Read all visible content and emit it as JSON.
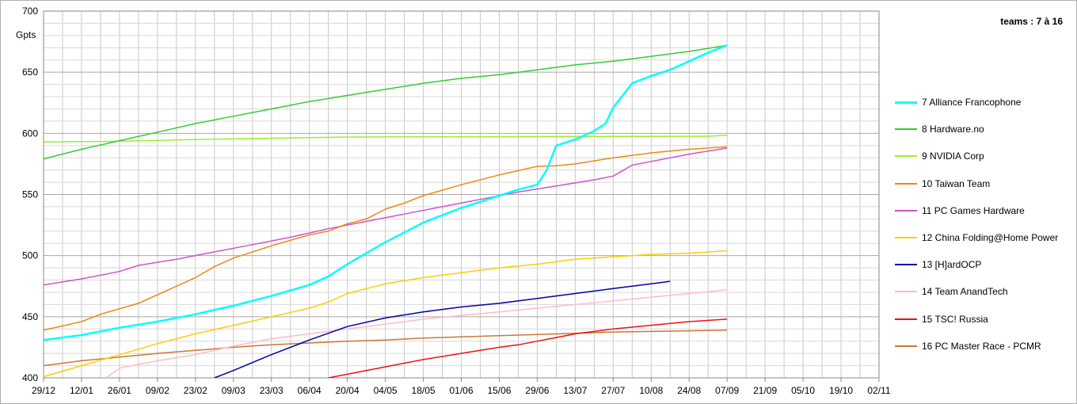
{
  "chart_data": {
    "type": "line",
    "title": "teams : 7 à 16",
    "ylabel": "Gpts",
    "xlabel": "",
    "ylim": [
      400,
      700
    ],
    "yticks": [
      400,
      450,
      500,
      550,
      600,
      650,
      700
    ],
    "xticks": [
      "29/12",
      "12/01",
      "26/01",
      "09/02",
      "23/02",
      "09/03",
      "23/03",
      "06/04",
      "20/04",
      "04/05",
      "18/05",
      "01/06",
      "15/06",
      "29/06",
      "13/07",
      "27/07",
      "10/08",
      "24/08",
      "07/09",
      "21/09",
      "05/10",
      "19/10",
      "02/11"
    ],
    "grid": true,
    "legend_position": "right",
    "series": [
      {
        "name": "7 Alliance Francophone",
        "color": "#00ffff",
        "points": [
          [
            0,
            431
          ],
          [
            2,
            435
          ],
          [
            4,
            441
          ],
          [
            6,
            446
          ],
          [
            8,
            452
          ],
          [
            10,
            459
          ],
          [
            12,
            467
          ],
          [
            14,
            476
          ],
          [
            15,
            483
          ],
          [
            16,
            493
          ],
          [
            17,
            502
          ],
          [
            18,
            511
          ],
          [
            19,
            519
          ],
          [
            20,
            527
          ],
          [
            21,
            533
          ],
          [
            22,
            539
          ],
          [
            23,
            544
          ],
          [
            24,
            549
          ],
          [
            25,
            554
          ],
          [
            26,
            558
          ],
          [
            26.5,
            570
          ],
          [
            27,
            590
          ],
          [
            28,
            595
          ],
          [
            29,
            602
          ],
          [
            29.6,
            608
          ],
          [
            30,
            621
          ],
          [
            31,
            641
          ],
          [
            32,
            647
          ],
          [
            33,
            652
          ],
          [
            34,
            659
          ],
          [
            35,
            666
          ],
          [
            36,
            672
          ]
        ]
      },
      {
        "name": "8 Hardware.no",
        "color": "#33cc33",
        "points": [
          [
            0,
            579
          ],
          [
            2,
            587
          ],
          [
            4,
            594
          ],
          [
            6,
            601
          ],
          [
            8,
            608
          ],
          [
            10,
            614
          ],
          [
            12,
            620
          ],
          [
            14,
            626
          ],
          [
            16,
            631
          ],
          [
            18,
            636
          ],
          [
            20,
            641
          ],
          [
            22,
            645
          ],
          [
            24,
            648
          ],
          [
            26,
            652
          ],
          [
            28,
            656
          ],
          [
            30,
            659
          ],
          [
            32,
            663
          ],
          [
            34,
            667
          ],
          [
            36,
            672
          ]
        ]
      },
      {
        "name": "9 NVIDIA Corp",
        "color": "#99ee33",
        "points": [
          [
            0,
            593
          ],
          [
            4,
            593.5
          ],
          [
            8,
            595
          ],
          [
            12,
            596
          ],
          [
            16,
            597
          ],
          [
            20,
            597.2
          ],
          [
            24,
            597.3
          ],
          [
            28,
            597.4
          ],
          [
            32,
            597.5
          ],
          [
            35,
            597.6
          ],
          [
            36,
            598.5
          ]
        ]
      },
      {
        "name": "10 Taiwan Team",
        "color": "#ee8811",
        "points": [
          [
            0,
            439
          ],
          [
            2,
            446
          ],
          [
            3,
            452
          ],
          [
            5,
            461
          ],
          [
            7,
            475
          ],
          [
            8,
            482
          ],
          [
            9,
            491
          ],
          [
            10,
            498
          ],
          [
            12,
            508
          ],
          [
            14,
            517
          ],
          [
            15,
            520
          ],
          [
            16,
            526
          ],
          [
            17,
            530
          ],
          [
            18,
            538
          ],
          [
            19,
            543
          ],
          [
            20,
            549
          ],
          [
            22,
            558
          ],
          [
            24,
            566
          ],
          [
            26,
            573
          ],
          [
            27,
            573.5
          ],
          [
            28,
            575
          ],
          [
            30,
            580
          ],
          [
            32,
            584
          ],
          [
            34,
            587
          ],
          [
            36,
            589
          ]
        ]
      },
      {
        "name": "11 PC Games Hardware",
        "color": "#cc55cc",
        "points": [
          [
            0,
            476
          ],
          [
            2,
            481
          ],
          [
            4,
            487
          ],
          [
            5,
            492
          ],
          [
            7,
            497
          ],
          [
            9,
            503
          ],
          [
            11,
            509
          ],
          [
            13,
            515
          ],
          [
            15,
            522
          ],
          [
            17,
            528
          ],
          [
            19,
            534
          ],
          [
            21,
            540
          ],
          [
            23,
            546
          ],
          [
            25,
            552
          ],
          [
            27,
            557
          ],
          [
            29,
            562
          ],
          [
            30,
            565
          ],
          [
            31,
            574
          ],
          [
            32,
            577
          ],
          [
            34,
            583
          ],
          [
            36,
            588
          ]
        ]
      },
      {
        "name": "12 China Folding@Home Power",
        "color": "#ffcc00",
        "points": [
          [
            0,
            401
          ],
          [
            2,
            410
          ],
          [
            4,
            419
          ],
          [
            6,
            428
          ],
          [
            8,
            436
          ],
          [
            10,
            443
          ],
          [
            12,
            450
          ],
          [
            14,
            457
          ],
          [
            15,
            462
          ],
          [
            16,
            469
          ],
          [
            18,
            477
          ],
          [
            20,
            482
          ],
          [
            22,
            486
          ],
          [
            24,
            490
          ],
          [
            26,
            493
          ],
          [
            28,
            497
          ],
          [
            30,
            499
          ],
          [
            32,
            501
          ],
          [
            34,
            502
          ],
          [
            36,
            504
          ]
        ]
      },
      {
        "name": "13 [H]ardOCP",
        "color": "#0000aa",
        "points": [
          [
            9,
            400
          ],
          [
            10,
            406
          ],
          [
            12,
            419
          ],
          [
            14,
            431
          ],
          [
            16,
            442
          ],
          [
            18,
            449
          ],
          [
            20,
            454
          ],
          [
            22,
            458
          ],
          [
            24,
            461
          ],
          [
            26,
            465
          ],
          [
            28,
            469
          ],
          [
            30,
            473
          ],
          [
            32,
            477
          ],
          [
            33,
            479
          ]
        ]
      },
      {
        "name": "14 Team AnandTech",
        "color": "#ffbbcc",
        "points": [
          [
            3.3,
            400
          ],
          [
            4,
            408
          ],
          [
            6,
            414
          ],
          [
            8,
            419
          ],
          [
            10,
            426
          ],
          [
            12,
            432
          ],
          [
            14,
            436
          ],
          [
            16,
            440
          ],
          [
            18,
            444
          ],
          [
            20,
            448
          ],
          [
            22,
            451
          ],
          [
            24,
            454
          ],
          [
            26,
            457
          ],
          [
            28,
            460
          ],
          [
            30,
            463
          ],
          [
            32,
            466
          ],
          [
            34,
            469
          ],
          [
            36,
            472
          ]
        ]
      },
      {
        "name": "15 TSC! Russia",
        "color": "#ee1111",
        "points": [
          [
            15,
            400
          ],
          [
            16,
            403
          ],
          [
            18,
            409
          ],
          [
            20,
            415
          ],
          [
            22,
            420
          ],
          [
            24,
            425
          ],
          [
            25,
            427
          ],
          [
            26,
            430
          ],
          [
            27,
            433
          ],
          [
            28,
            436
          ],
          [
            30,
            440
          ],
          [
            32,
            443
          ],
          [
            34,
            446
          ],
          [
            36,
            448
          ]
        ]
      },
      {
        "name": "16 PC Master Race - PCMR",
        "color": "#cc7733",
        "points": [
          [
            0,
            410
          ],
          [
            2,
            414
          ],
          [
            4,
            417
          ],
          [
            6,
            420
          ],
          [
            8,
            422.5
          ],
          [
            10,
            425
          ],
          [
            12,
            427
          ],
          [
            14,
            428.5
          ],
          [
            16,
            430
          ],
          [
            18,
            431
          ],
          [
            20,
            432.5
          ],
          [
            22,
            433.5
          ],
          [
            24,
            434.5
          ],
          [
            26,
            435.5
          ],
          [
            28,
            436.5
          ],
          [
            30,
            437.5
          ],
          [
            32,
            438
          ],
          [
            34,
            438.5
          ],
          [
            36,
            439
          ]
        ]
      }
    ]
  }
}
